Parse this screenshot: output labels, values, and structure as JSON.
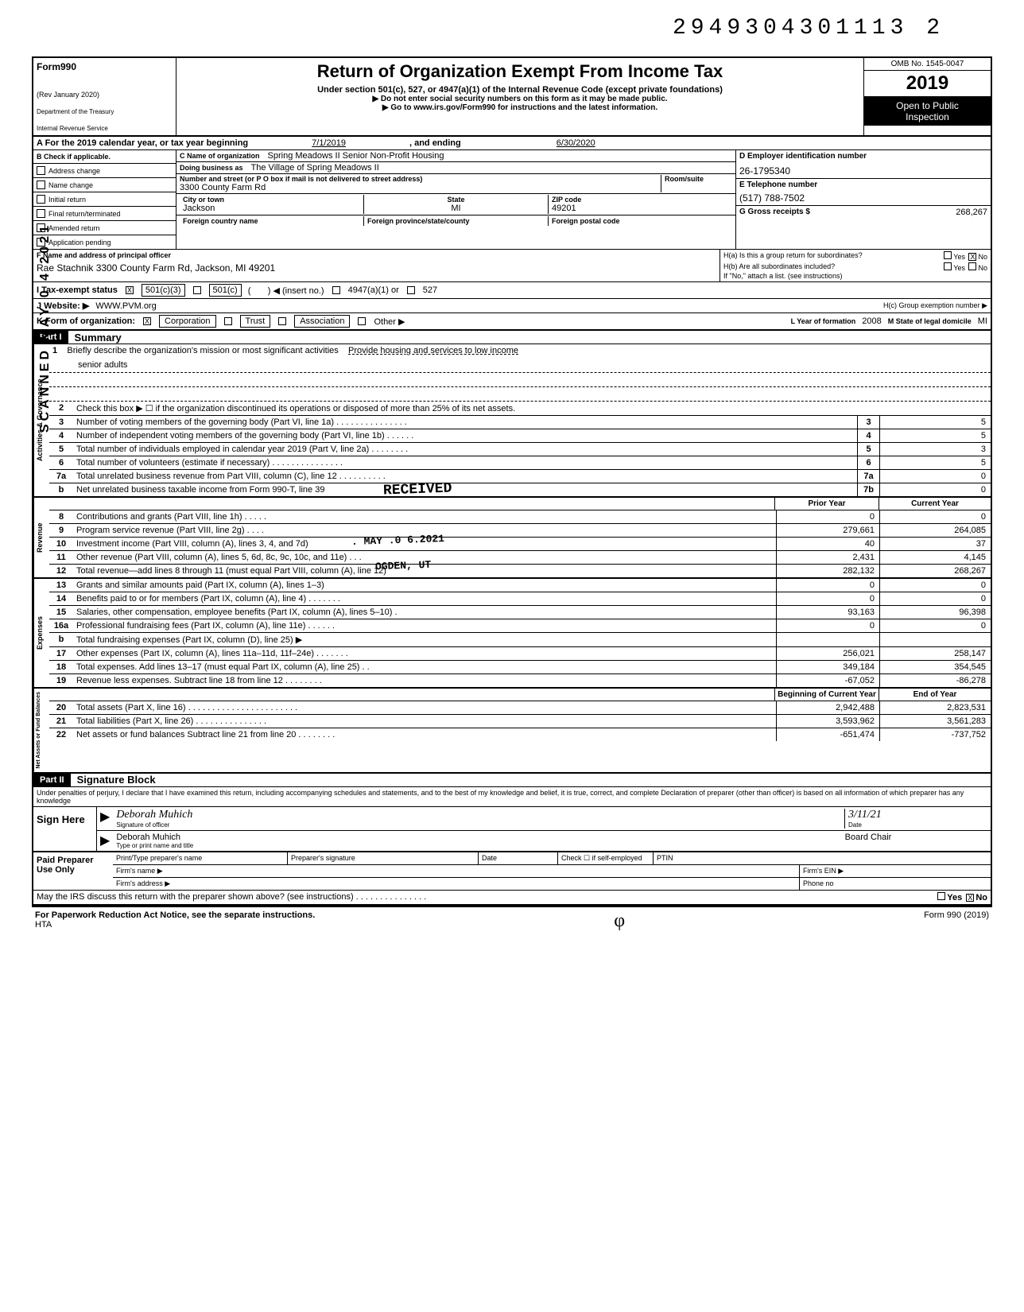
{
  "doc_id": "2949304301113  2",
  "form": {
    "number": "990",
    "form_prefix": "Form",
    "rev": "(Rev January 2020)",
    "dept": "Department of the Treasury",
    "irs": "Internal Revenue Service",
    "title": "Return of Organization Exempt From Income Tax",
    "subtitle": "Under section 501(c), 527, or 4947(a)(1) of the Internal Revenue Code (except private foundations)",
    "instr1": "▶   Do not enter social security numbers on this form as it may be made public.",
    "instr2": "▶  Go to www.irs.gov/Form990 for instructions and the latest information.",
    "omb": "OMB No. 1545-0047",
    "year": "2019",
    "open": "Open to Public",
    "inspection": "Inspection"
  },
  "row_a": {
    "label": "A  For the 2019 calendar year, or tax year beginning",
    "begin_date": "7/1/2019",
    "and_ending": ", and ending",
    "end_date": "6/30/2020"
  },
  "section_b": {
    "check_label": "B  Check if applicable.",
    "items": [
      "Address change",
      "Name change",
      "Initial return",
      "Final return/terminated",
      "Amended return",
      "Application pending"
    ],
    "c_label": "C  Name of organization",
    "org_name": "Spring Meadows II Senior Non-Profit Housing",
    "dba_label": "Doing business as",
    "dba": "The Village of Spring Meadows II",
    "addr_label": "Number and street (or P O  box if mail is not delivered to street address)",
    "room_label": "Room/suite",
    "addr": "3300 County Farm Rd",
    "city_label": "City or town",
    "city": "Jackson",
    "state_label": "State",
    "state": "MI",
    "zip_label": "ZIP code",
    "zip": "49201",
    "foreign_country_label": "Foreign country name",
    "foreign_prov_label": "Foreign province/state/county",
    "foreign_postal_label": "Foreign postal code",
    "d_label": "D    Employer identification number",
    "ein": "26-1795340",
    "e_label": "E   Telephone number",
    "phone": "(517) 788-7502",
    "g_label": "G   Gross receipts $",
    "gross": "268,267"
  },
  "officer": {
    "f_label": "F  Name and address of principal officer",
    "name_addr": "Rae Stachnik 3300 County Farm Rd, Jackson, MI  49201",
    "ha_label": "H(a) Is this a group return for subordinates?",
    "ha_yes": "Yes",
    "ha_no": "No",
    "hb_label": "H(b) Are all subordinates included?",
    "hb_yes": "Yes",
    "hb_no": "No",
    "hb_note": "If \"No,\" attach a list. (see instructions)"
  },
  "row_i": {
    "label": "I     Tax-exempt status",
    "opt1": "501(c)(3)",
    "opt2": "501(c)",
    "insert": "(insert no.)",
    "opt3": "4947(a)(1) or",
    "opt4": "527"
  },
  "row_j": {
    "label": "J    Website: ▶",
    "val": "WWW.PVM.org",
    "hc_label": "H(c) Group exemption number ▶"
  },
  "row_k": {
    "label": "K  Form of organization:",
    "opts": [
      "Corporation",
      "Trust",
      "Association",
      "Other ▶"
    ],
    "l_label": "L Year of formation",
    "l_val": "2008",
    "m_label": "M State of legal domicile",
    "m_val": "MI"
  },
  "part1": {
    "label": "Part I",
    "title": "Summary"
  },
  "governance": {
    "vert": "Activities & Governance",
    "l1_num": "1",
    "l1": "Briefly describe the organization's mission or most significant activities",
    "l1_val": "Provide housing and services to low income",
    "l1_val2": "senior adults",
    "l2_num": "2",
    "l2": "Check this box  ▶ ☐ if the organization discontinued its operations or disposed of more than 25% of its net assets.",
    "l3_num": "3",
    "l3": "Number of voting members of the governing body (Part VI, line 1a) . . . . . . . . . . . . . . .",
    "l3_box": "3",
    "l3_val": "5",
    "l4_num": "4",
    "l4": "Number of independent voting members of the governing body (Part VI, line 1b) .    . . . . .",
    "l4_box": "4",
    "l4_val": "5",
    "l5_num": "5",
    "l5": "Total number of individuals employed in calendar year 2019 (Part V, line 2a) . .   . . . . . .",
    "l5_box": "5",
    "l5_val": "3",
    "l6_num": "6",
    "l6": "Total number of volunteers (estimate if necessary) .  .  .   .    .   .   .   .   . . . . . . .",
    "l6_box": "6",
    "l6_val": "5",
    "l7a_num": "7a",
    "l7a": "Total unrelated business revenue from Part VIII, column (C), line 12 . . . . . . .   . . .",
    "l7a_box": "7a",
    "l7a_val": "0",
    "l7b_num": "b",
    "l7b": "Net unrelated business taxable income from Form 990-T, line 39",
    "l7b_box": "7b",
    "l7b_val": "0"
  },
  "hdr": {
    "prior": "Prior Year",
    "current": "Current Year"
  },
  "revenue": {
    "vert": "Revenue",
    "lines": [
      {
        "num": "8",
        "desc": "Contributions and grants (Part VIII, line 1h) .    . . . .",
        "prior": "0",
        "curr": "0"
      },
      {
        "num": "9",
        "desc": "Program service revenue (Part VIII, line 2g)     . . . .",
        "prior": "279,661",
        "curr": "264,085"
      },
      {
        "num": "10",
        "desc": "Investment income (Part VIII, column (A), lines 3, 4, and 7d)",
        "prior": "40",
        "curr": "37"
      },
      {
        "num": "11",
        "desc": "Other revenue (Part VIII, column (A), lines 5, 6d, 8c, 9c, 10c, and 11e) .   . .",
        "prior": "2,431",
        "curr": "4,145"
      },
      {
        "num": "12",
        "desc": "Total revenue—add lines 8 through 11 (must equal Part VIII, column (A), line 12)",
        "prior": "282,132",
        "curr": "268,267"
      }
    ]
  },
  "received_stamp": "RECEIVED",
  "may_stamp": ". MAY .0 6.2021",
  "ogden_stamp": "OGDEN, UT",
  "expenses": {
    "vert": "Expenses",
    "lines": [
      {
        "num": "13",
        "desc": "Grants and similar amounts paid (Part IX, column (A), lines 1–3)",
        "prior": "0",
        "curr": "0"
      },
      {
        "num": "14",
        "desc": "Benefits paid to or for members (Part IX, column (A), line 4) .   . . . . . .",
        "prior": "0",
        "curr": "0"
      },
      {
        "num": "15",
        "desc": "Salaries, other compensation, employee benefits (Part IX, column (A), lines 5–10) .",
        "prior": "93,163",
        "curr": "96,398"
      },
      {
        "num": "16a",
        "desc": "Professional fundraising fees (Part IX, column (A), line 11e) . .    . . . .",
        "prior": "0",
        "curr": "0"
      },
      {
        "num": "b",
        "desc": "Total fundraising expenses (Part IX, column (D), line 25)  ▶",
        "prior": "",
        "curr": ""
      },
      {
        "num": "17",
        "desc": "Other expenses (Part IX, column (A), lines 11a–11d, 11f–24e) . . . . . . .",
        "prior": "256,021",
        "curr": "258,147"
      },
      {
        "num": "18",
        "desc": "Total expenses. Add lines 13–17 (must equal Part IX, column (A), line 25) . .",
        "prior": "349,184",
        "curr": "354,545"
      },
      {
        "num": "19",
        "desc": "Revenue less expenses. Subtract line 18 from line 12 . .   .    .   . . . .",
        "prior": "-67,052",
        "curr": "-86,278"
      }
    ]
  },
  "netassets": {
    "vert": "Net Assets or Fund Balances",
    "hdr_begin": "Beginning of Current Year",
    "hdr_end": "End of Year",
    "lines": [
      {
        "num": "20",
        "desc": "Total assets (Part X, line 16) . . . . . . . . . . . . . . . . . . . . . . .",
        "prior": "2,942,488",
        "curr": "2,823,531"
      },
      {
        "num": "21",
        "desc": "Total liabilities (Part X, line 26) . . .   .   . . . . . . . . . . .",
        "prior": "3,593,962",
        "curr": "3,561,283"
      },
      {
        "num": "22",
        "desc": "Net assets or fund balances  Subtract line 21 from line 20 . . . . . . . .",
        "prior": "-651,474",
        "curr": "-737,752"
      }
    ]
  },
  "part2": {
    "label": "Part II",
    "title": "Signature Block",
    "perjury": "Under penalties of perjury, I declare that I have examined this return, including accompanying schedules and statements, and to the best of my knowledge and belief, it is true, correct, and complete  Declaration of preparer (other than officer) is based on all information of which preparer has any knowledge"
  },
  "sign": {
    "label": "Sign Here",
    "sig_text": "(signature)",
    "sig_caption": "Signature of officer",
    "date_caption": "Date",
    "date_hand": "3/11/21",
    "name": "Deborah Muhich",
    "title_role": "Board Chair",
    "type_caption": "Type or print name and title"
  },
  "preparer": {
    "label": "Paid Preparer Use Only",
    "name_label": "Print/Type preparer's name",
    "sig_label": "Preparer's signature",
    "date_label": "Date",
    "check_label": "Check ☐ if self-employed",
    "ptin_label": "PTIN",
    "firm_name_label": "Firm's name   ▶",
    "firm_ein_label": "Firm's EIN ▶",
    "firm_addr_label": "Firm's address ▶",
    "phone_label": "Phone no"
  },
  "discuss": {
    "text": "May the IRS discuss this return with the preparer shown above? (see instructions) . . . . . . . . . . . . . . .",
    "yes": "Yes",
    "no": "No"
  },
  "footer": {
    "paperwork": "For Paperwork Reduction Act Notice, see the separate instructions.",
    "hta": "HTA",
    "formref": "Form 990 (2019)"
  },
  "side_text": "SCANNED MAY 0 4 2021"
}
